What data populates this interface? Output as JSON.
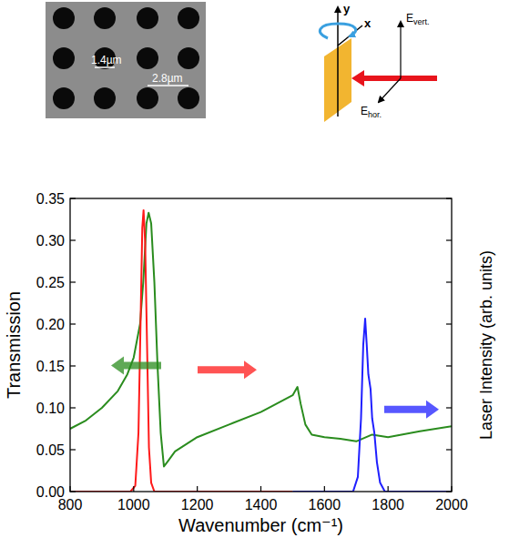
{
  "chart_data": {
    "type": "line",
    "xlabel": "Wavenumber (cm⁻¹)",
    "ylabel": "Transmission",
    "y2label": "Laser Intensity (arb. units)",
    "xlim": [
      800,
      2000
    ],
    "xticks": [
      800,
      1000,
      1200,
      1400,
      1600,
      1800,
      2000
    ],
    "ylim": [
      0,
      0.35
    ],
    "yticks": [
      {
        "value": 0,
        "label": "0.00"
      },
      {
        "value": 0.05,
        "label": "0.05"
      },
      {
        "value": 0.1,
        "label": "0.10"
      },
      {
        "value": 0.15,
        "label": "0.15"
      },
      {
        "value": 0.2,
        "label": "0.20"
      },
      {
        "value": 0.25,
        "label": "0.25"
      },
      {
        "value": 0.3,
        "label": "0.30"
      },
      {
        "value": 0.35,
        "label": "0.35"
      }
    ],
    "y2lim": [
      0,
      1
    ],
    "tick_labels": true,
    "series": [
      {
        "color": "#2a8c1e",
        "x": [
          800,
          850,
          900,
          950,
          980,
          1000,
          1020,
          1030,
          1040,
          1047,
          1055,
          1065,
          1075,
          1085,
          1095,
          1105,
          1130,
          1200,
          1300,
          1400,
          1450,
          1500,
          1515,
          1525,
          1540,
          1560,
          1600,
          1650,
          1700,
          1750,
          1800,
          1900,
          2000
        ],
        "values": [
          0.075,
          0.085,
          0.1,
          0.12,
          0.14,
          0.16,
          0.2,
          0.25,
          0.32,
          0.333,
          0.32,
          0.25,
          0.15,
          0.07,
          0.03,
          0.035,
          0.048,
          0.065,
          0.08,
          0.095,
          0.105,
          0.115,
          0.125,
          0.105,
          0.08,
          0.068,
          0.065,
          0.063,
          0.06,
          0.068,
          0.065,
          0.072,
          0.078
        ]
      },
      {
        "color": "#ff1a1a",
        "axis": "y2",
        "x": [
          800,
          990,
          1005,
          1015,
          1022,
          1027,
          1031,
          1036,
          1042,
          1048,
          1055,
          1065,
          1500
        ],
        "values": [
          0,
          0,
          0.02,
          0.2,
          0.6,
          0.9,
          0.96,
          0.85,
          0.5,
          0.15,
          0.03,
          0,
          0
        ]
      },
      {
        "color": "#1f1fff",
        "axis": "y2",
        "x": [
          1500,
          1690,
          1705,
          1715,
          1722,
          1728,
          1733,
          1738,
          1745,
          1750,
          1757,
          1765,
          1775,
          1790,
          2000
        ],
        "values": [
          0,
          0,
          0.05,
          0.25,
          0.5,
          0.59,
          0.5,
          0.4,
          0.35,
          0.25,
          0.2,
          0.1,
          0.03,
          0,
          0
        ]
      }
    ]
  },
  "sem_image": {
    "scale_labels": [
      "1.4µm",
      "2.8µm"
    ]
  },
  "schematic": {
    "axis_labels": [
      "y",
      "x"
    ],
    "field_labels": [
      {
        "symbol": "E",
        "subscript": "vert."
      },
      {
        "symbol": "E",
        "subscript": "hor."
      }
    ]
  }
}
